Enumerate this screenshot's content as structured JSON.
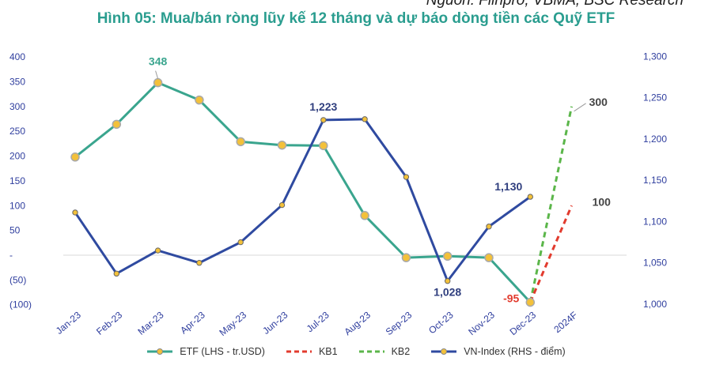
{
  "source": "Nguồn: Fiinpro, VBMA, BSC Research",
  "title": "Hình 05: Mua/bán ròng lũy kế 12 tháng và dự báo dòng tiền các Quỹ ETF",
  "colors": {
    "etf": "#3aa58e",
    "kb1": "#e23b2e",
    "kb2": "#5bb64a",
    "vnindex": "#2f4aa0",
    "marker": "#f3c13a",
    "axis_text": "#2f3e9e"
  },
  "chart_data": {
    "type": "line",
    "categories": [
      "Jan-23",
      "Feb-23",
      "Mar-23",
      "Apr-23",
      "May-23",
      "Jun-23",
      "Jul-23",
      "Aug-23",
      "Sep-23",
      "Oct-23",
      "Nov-23",
      "Dec-23",
      "2024F"
    ],
    "left_axis": {
      "ticks": [
        "400",
        "350",
        "300",
        "250",
        "200",
        "150",
        "100",
        "50",
        "-",
        "(50)",
        "(100)"
      ],
      "ylim": [
        -100,
        400
      ]
    },
    "right_axis": {
      "ticks": [
        "1,300",
        "1,250",
        "1,200",
        "1,150",
        "1,100",
        "1,050",
        "1,000"
      ],
      "ylim": [
        1000,
        1300
      ]
    },
    "series": [
      {
        "name": "ETF (LHS - tr.USD)",
        "axis": "left",
        "style": "solid",
        "values": [
          198,
          264,
          348,
          313,
          229,
          222,
          221,
          80,
          -5,
          -2,
          -5,
          -95,
          null
        ]
      },
      {
        "name": "KB1",
        "axis": "left",
        "style": "dashed",
        "values": [
          null,
          null,
          null,
          null,
          null,
          null,
          null,
          null,
          null,
          null,
          null,
          -95,
          100
        ]
      },
      {
        "name": "KB2",
        "axis": "left",
        "style": "dashed",
        "values": [
          null,
          null,
          null,
          null,
          null,
          null,
          null,
          null,
          null,
          null,
          null,
          -95,
          300
        ]
      },
      {
        "name": "VN-Index (RHS - điểm)",
        "axis": "right",
        "style": "solid",
        "values": [
          1111,
          1037,
          1065,
          1050,
          1075,
          1120,
          1223,
          1224,
          1154,
          1028,
          1094,
          1130,
          null
        ]
      }
    ],
    "annotations": [
      {
        "text": "348",
        "series": "ETF (LHS - tr.USD)",
        "category": "Mar-23"
      },
      {
        "text": "-95",
        "series": "ETF (LHS - tr.USD)",
        "category": "Dec-23"
      },
      {
        "text": "1,223",
        "series": "VN-Index (RHS - điểm)",
        "category": "Jul-23"
      },
      {
        "text": "1,028",
        "series": "VN-Index (RHS - điểm)",
        "category": "Oct-23"
      },
      {
        "text": "1,130",
        "series": "VN-Index (RHS - điểm)",
        "category": "Dec-23"
      },
      {
        "text": "300",
        "series": "KB2",
        "category": "2024F"
      },
      {
        "text": "100",
        "series": "KB1",
        "category": "2024F"
      }
    ],
    "grid": false,
    "legend_position": "bottom"
  },
  "legend": [
    {
      "label": "ETF (LHS - tr.USD)",
      "kind": "solid-marker",
      "color": "#3aa58e"
    },
    {
      "label": "KB1",
      "kind": "dashed",
      "color": "#e23b2e"
    },
    {
      "label": "KB2",
      "kind": "dashed",
      "color": "#5bb64a"
    },
    {
      "label": "VN-Index (RHS - điểm)",
      "kind": "solid-marker",
      "color": "#2f4aa0"
    }
  ]
}
